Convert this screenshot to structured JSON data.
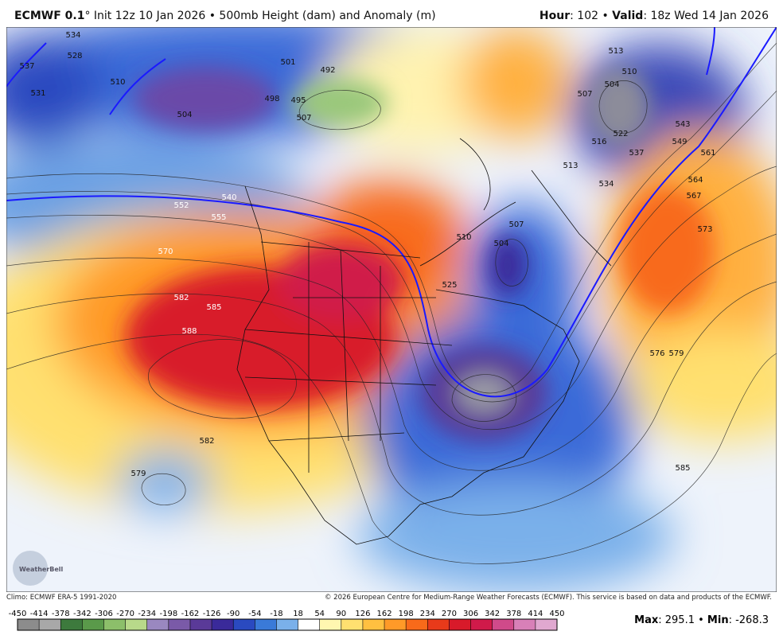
{
  "header": {
    "model": "ECMWF 0.1",
    "description": "° Init 12z 10 Jan 2026 • 500mb Height (dam) and Anomaly (m)",
    "hour_label": "Hour",
    "hour_value": ": 102 • ",
    "valid_label": "Valid",
    "valid_value": ": 18z Wed 14 Jan 2026"
  },
  "map": {
    "contour_labels": [
      "552",
      "555",
      "570",
      "582",
      "585",
      "588",
      "582",
      "579",
      "501",
      "492",
      "498",
      "495",
      "507",
      "504",
      "510",
      "537",
      "531",
      "528",
      "534",
      "513",
      "510",
      "504",
      "507",
      "516",
      "522",
      "537",
      "543",
      "549",
      "561",
      "564",
      "567",
      "573",
      "576",
      "579",
      "585",
      "504",
      "507",
      "510",
      "513",
      "525",
      "540",
      "534"
    ],
    "logo": "WeatherBell"
  },
  "footer": {
    "climo": "Climo: ECMWF ERA-5 1991-2020",
    "copyright": "© 2026 European Centre for Medium-Range Weather Forecasts (ECMWF). This service is based on data and products of the ECMWF."
  },
  "colorbar": {
    "ticks": [
      -450,
      -414,
      -378,
      -342,
      -306,
      -270,
      -234,
      -198,
      -162,
      -126,
      -90,
      -54,
      -18,
      18,
      54,
      90,
      126,
      162,
      198,
      234,
      270,
      306,
      342,
      378,
      414,
      450
    ],
    "colors": [
      "#8c8c8c",
      "#a8a8a8",
      "#3d7a3d",
      "#5a9a4a",
      "#8cbf6a",
      "#b8d98a",
      "#9a88c0",
      "#7a5aa8",
      "#5a3a98",
      "#3a2a9a",
      "#2a4ac0",
      "#3a7ad8",
      "#7ab0ea",
      "#ffffff",
      "#fff7b0",
      "#ffe070",
      "#ffc040",
      "#ff9a28",
      "#f86a1a",
      "#e83a1a",
      "#d81a2a",
      "#d01a4a",
      "#d04a8a",
      "#d880b8",
      "#e0a8d0"
    ]
  },
  "stats": {
    "max_label": "Max",
    "max_value": ": 295.1 • ",
    "min_label": "Min",
    "min_value": ": -268.3"
  }
}
